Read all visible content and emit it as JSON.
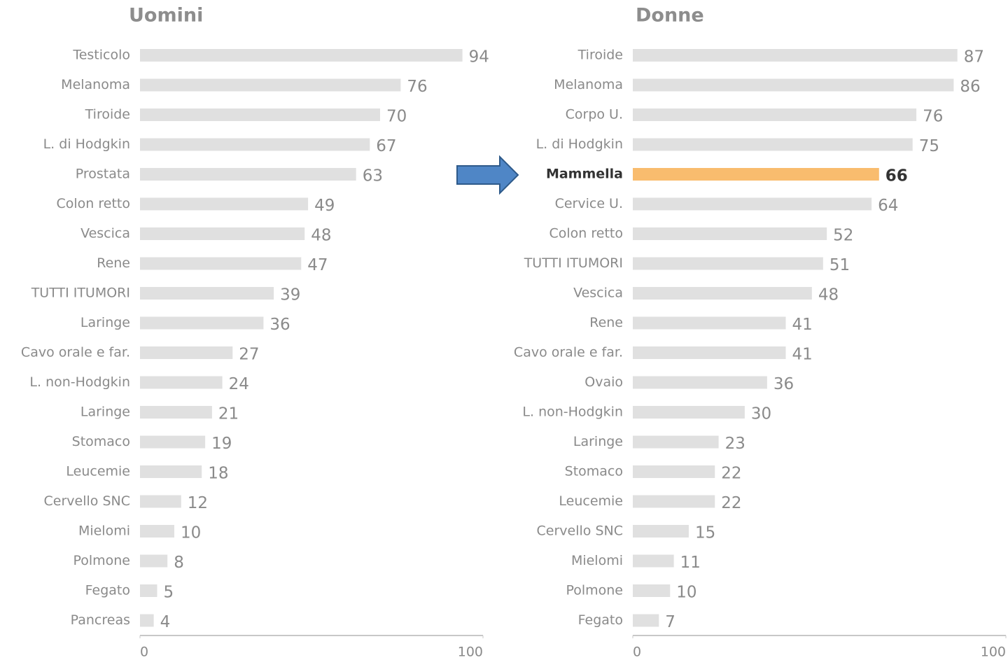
{
  "chart_data": [
    {
      "type": "bar",
      "orientation": "horizontal",
      "title": "Uomini",
      "categories": [
        "Testicolo",
        "Melanoma",
        "Tiroide",
        "L. di Hodgkin",
        "Prostata",
        "Colon retto",
        "Vescica",
        "Rene",
        "TUTTI ITUMORI",
        "Laringe",
        "Cavo orale e far.",
        "L. non-Hodgkin",
        "Laringe",
        "Stomaco",
        "Leucemie",
        "Cervello SNC",
        "Mielomi",
        "Polmone",
        "Fegato",
        "Pancreas"
      ],
      "values": [
        94,
        76,
        70,
        67,
        63,
        49,
        48,
        47,
        39,
        36,
        27,
        24,
        21,
        19,
        18,
        12,
        10,
        8,
        5,
        4
      ],
      "colors": [
        "#e0e0e0",
        "#e0e0e0",
        "#e0e0e0",
        "#e0e0e0",
        "#e0e0e0",
        "#e0e0e0",
        "#e0e0e0",
        "#e0e0e0",
        "#e0e0e0",
        "#e0e0e0",
        "#e0e0e0",
        "#e0e0e0",
        "#e0e0e0",
        "#e0e0e0",
        "#e0e0e0",
        "#e0e0e0",
        "#e0e0e0",
        "#e0e0e0",
        "#e0e0e0",
        "#e0e0e0"
      ],
      "xlim": [
        0,
        100
      ],
      "xticks": [
        0,
        100
      ]
    },
    {
      "type": "bar",
      "orientation": "horizontal",
      "title": "Donne",
      "categories": [
        "Tiroide",
        "Melanoma",
        "Corpo U.",
        "L. di Hodgkin",
        "Mammella",
        "Cervice U.",
        "Colon retto",
        "TUTTI ITUMORI",
        "Vescica",
        "Rene",
        "Cavo orale e far.",
        "Ovaio",
        "L. non-Hodgkin",
        "Laringe",
        "Stomaco",
        "Leucemie",
        "Cervello SNC",
        "Mielomi",
        "Polmone",
        "Fegato"
      ],
      "values": [
        87,
        86,
        76,
        75,
        66,
        64,
        52,
        51,
        48,
        41,
        41,
        36,
        30,
        23,
        22,
        22,
        15,
        11,
        10,
        7
      ],
      "colors": [
        "#e0e0e0",
        "#e0e0e0",
        "#e0e0e0",
        "#e0e0e0",
        "#f9bc6e",
        "#e0e0e0",
        "#e0e0e0",
        "#e0e0e0",
        "#e0e0e0",
        "#e0e0e0",
        "#e0e0e0",
        "#e0e0e0",
        "#e0e0e0",
        "#e0e0e0",
        "#e0e0e0",
        "#e0e0e0",
        "#e0e0e0",
        "#e0e0e0",
        "#e0e0e0",
        "#e0e0e0"
      ],
      "xlim": [
        0,
        100
      ],
      "xticks": [
        0,
        100
      ]
    }
  ]
}
